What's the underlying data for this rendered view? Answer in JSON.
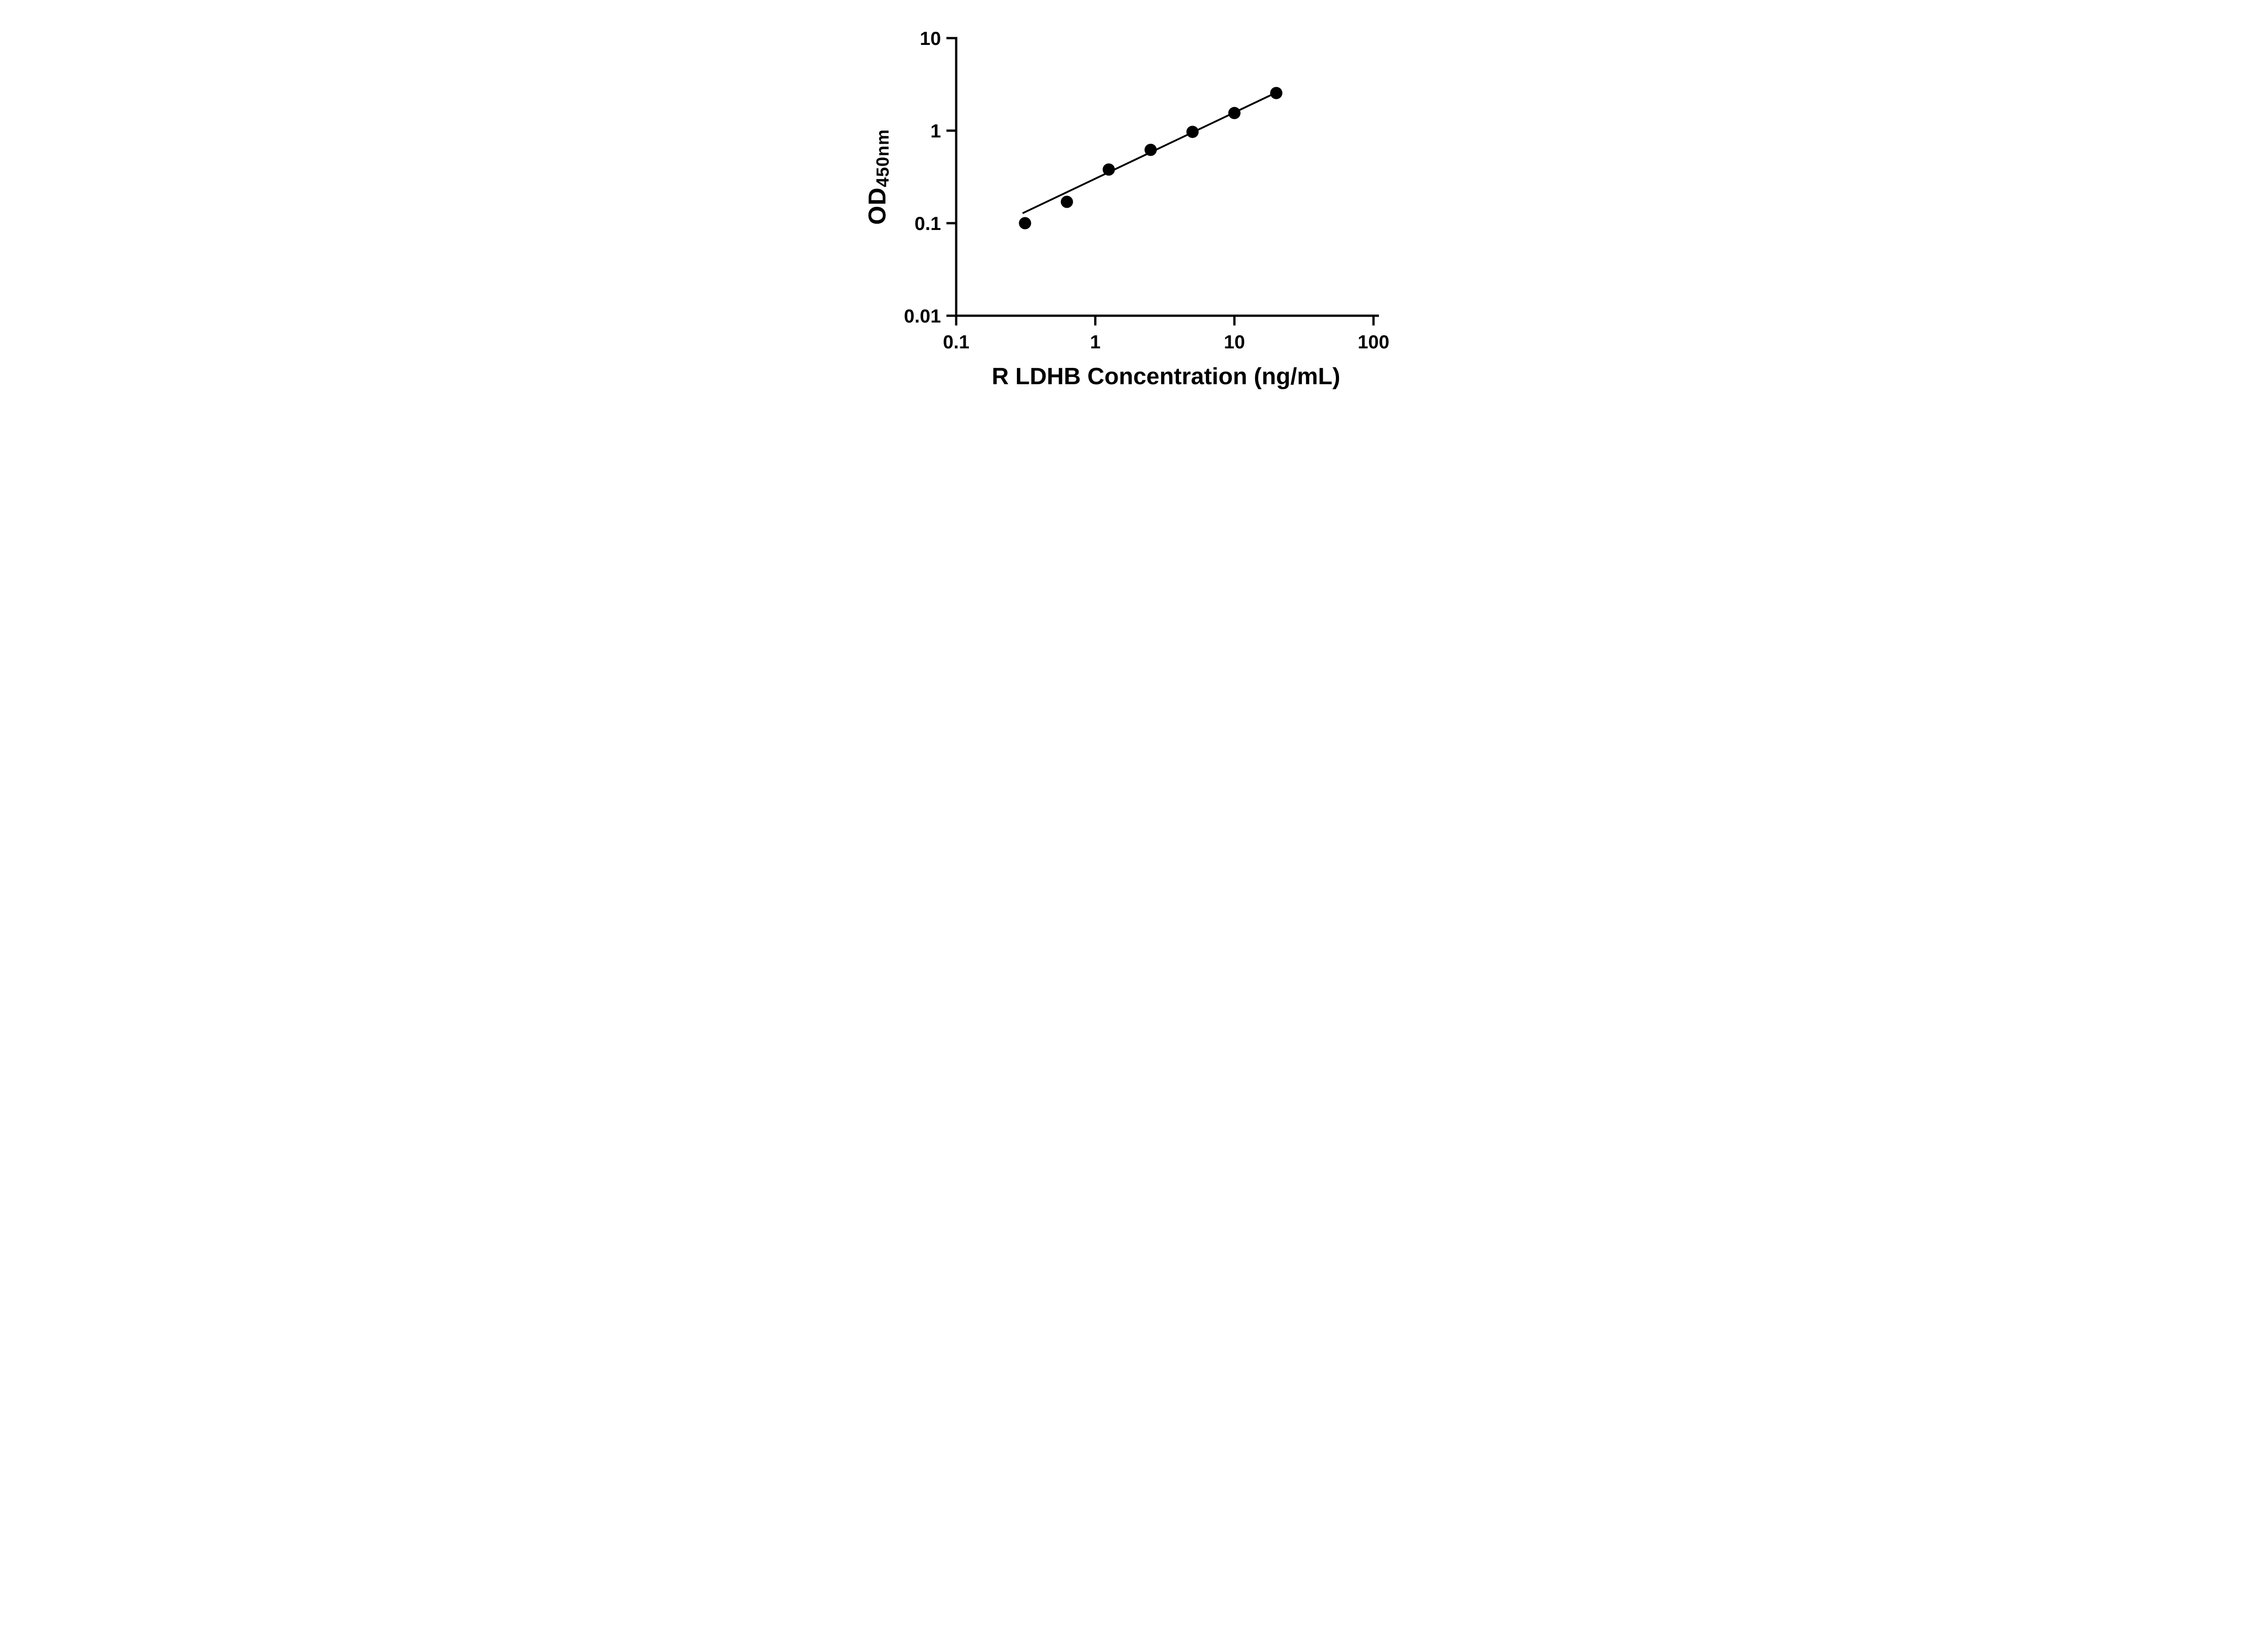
{
  "chart_data": {
    "type": "scatter",
    "title": "",
    "xlabel": "R LDHB Concentration (ng/mL)",
    "ylabel_main": "OD",
    "ylabel_sub": "450nm",
    "x_scale": "log",
    "y_scale": "log",
    "xlim": [
      0.1,
      100
    ],
    "ylim": [
      0.01,
      10
    ],
    "x_ticks": [
      0.1,
      1,
      10,
      100
    ],
    "x_tick_labels": [
      "0.1",
      "1",
      "10",
      "100"
    ],
    "y_ticks": [
      0.01,
      0.1,
      1,
      10
    ],
    "y_tick_labels": [
      "0.01",
      "0.1",
      "1",
      "10"
    ],
    "x": [
      0.3125,
      0.625,
      1.25,
      2.5,
      5,
      10,
      20
    ],
    "y": [
      0.1,
      0.17,
      0.38,
      0.62,
      0.97,
      1.55,
      2.55
    ],
    "trend_line": {
      "x1": 0.3,
      "y1": 0.128,
      "x2": 20,
      "y2": 2.58
    },
    "grid": "off",
    "legend": "none",
    "marker_color": "#000000",
    "line_color": "#000000",
    "axis_color": "#000000",
    "background": "#ffffff"
  }
}
